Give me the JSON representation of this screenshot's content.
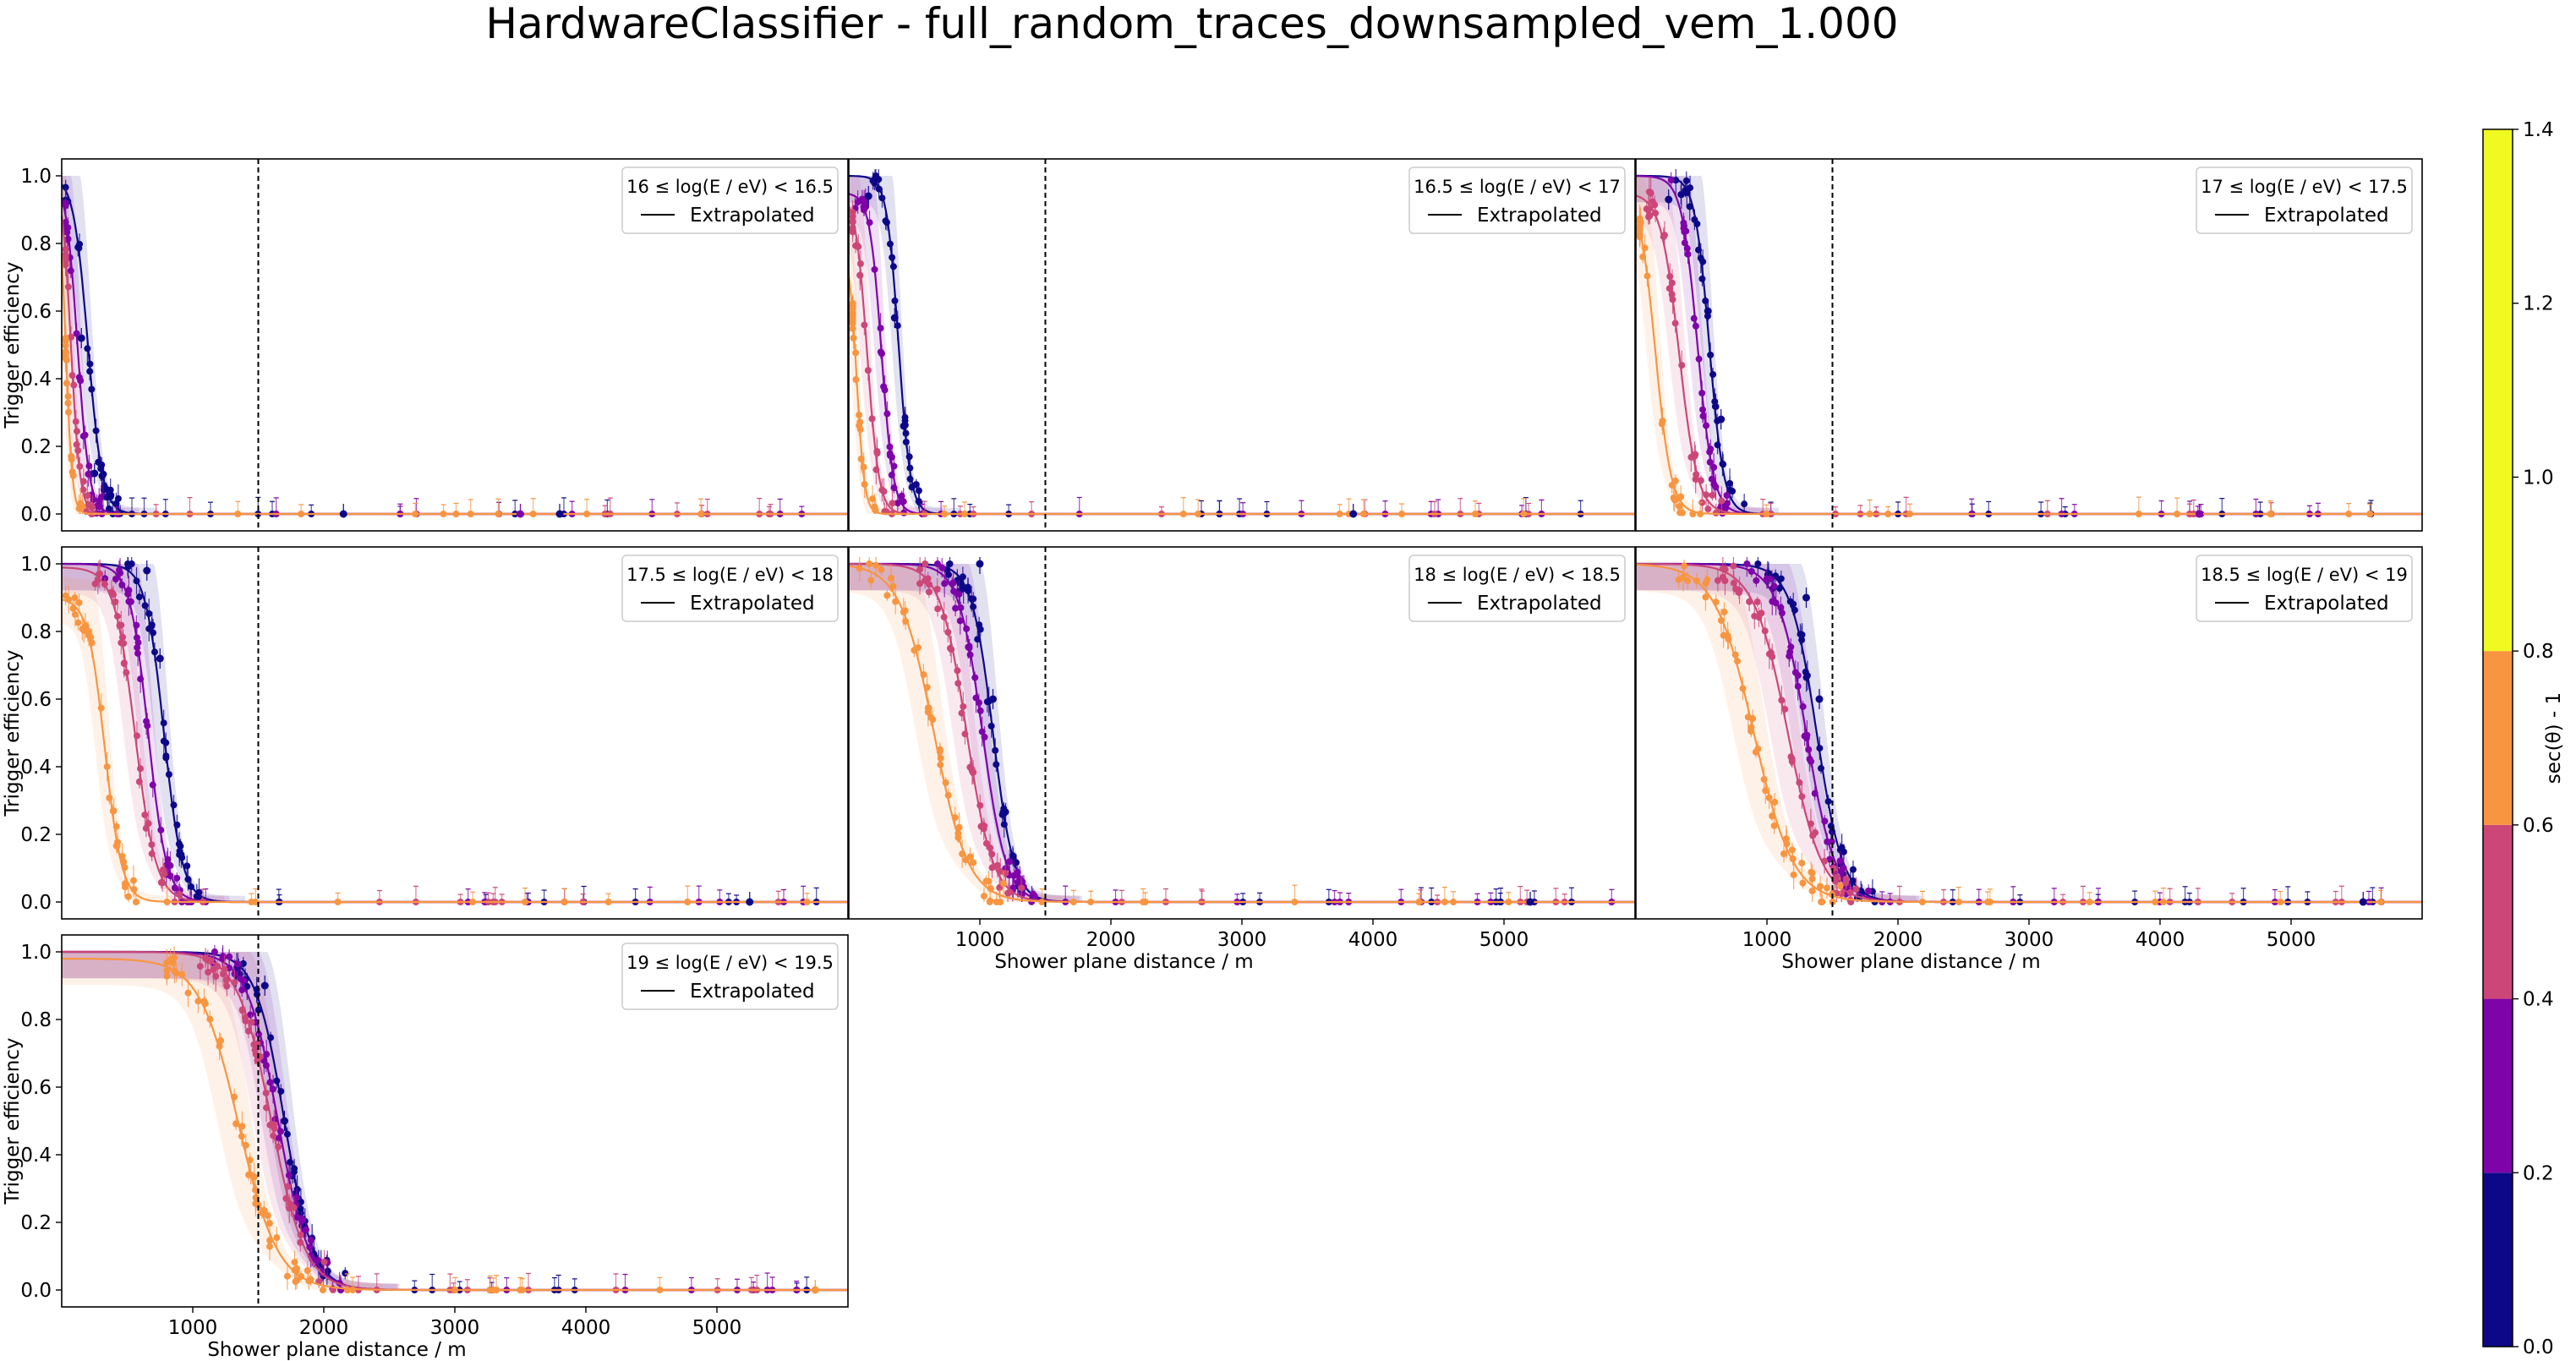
{
  "figure": {
    "title": "HardwareClassifier - full_random_traces_downsampled_vem_1.000"
  },
  "colors": {
    "bin_0.0": "#0d0887",
    "bin_0.2": "#7e03a8",
    "bin_0.4": "#cc4778",
    "bin_0.6": "#f89540",
    "bin_0.8": "#f0f921",
    "axes": "#000000",
    "dashed_line": "#000000"
  },
  "colorbar": {
    "label": "sec(θ) - 1",
    "ticks": [
      "0.0",
      "0.2",
      "0.4",
      "0.6",
      "0.8",
      "1.0",
      "1.2",
      "1.4"
    ],
    "bins": [
      {
        "from": 0.0,
        "to": 0.2,
        "color": "#0d0887"
      },
      {
        "from": 0.2,
        "to": 0.4,
        "color": "#7e03a8"
      },
      {
        "from": 0.4,
        "to": 0.6,
        "color": "#cc4778"
      },
      {
        "from": 0.6,
        "to": 0.8,
        "color": "#f89540"
      },
      {
        "from": 0.8,
        "to": 1.4,
        "color": "#f0f921"
      }
    ]
  },
  "chart_data": [
    {
      "type": "line",
      "legend_title": "16 ≤ log(E / eV) < 16.5",
      "legend_entry": "Extrapolated",
      "legend_placement": "top-right",
      "ylabel": "Trigger efficiency",
      "xlabel": "",
      "xlim": [
        0,
        6000
      ],
      "ylim": [
        -0.05,
        1.05
      ],
      "yticks": [
        "0.0",
        "0.2",
        "0.4",
        "0.6",
        "0.8",
        "1.0"
      ],
      "xticks": [],
      "reference_line_x": 1500,
      "series": [
        {
          "bin": "0.0-0.2",
          "color": "#0d0887",
          "x50": 200,
          "width": 55,
          "max": 1.0
        },
        {
          "bin": "0.2-0.4",
          "color": "#7e03a8",
          "x50": 120,
          "width": 45,
          "max": 1.0
        },
        {
          "bin": "0.4-0.6",
          "color": "#cc4778",
          "x50": 70,
          "width": 35,
          "max": 1.0
        },
        {
          "bin": "0.6-0.8",
          "color": "#f89540",
          "x50": 30,
          "width": 25,
          "max": 1.0
        }
      ],
      "points_sample": [
        {
          "x": 150,
          "y": 0.52,
          "color": "#0d0887"
        },
        {
          "x": 250,
          "y": 0.12,
          "color": "#0d0887"
        },
        {
          "x": 350,
          "y": 0.05,
          "color": "#0d0887"
        },
        {
          "x": 2150,
          "y": 0.0,
          "color": "#0d0887"
        },
        {
          "x": 3500,
          "y": 0.0,
          "color": "#7e03a8"
        },
        {
          "x": 3800,
          "y": 0.0,
          "color": "#0d0887"
        }
      ]
    },
    {
      "type": "line",
      "legend_title": "16.5 ≤ log(E / eV) < 17",
      "legend_entry": "Extrapolated",
      "legend_placement": "top-right",
      "ylabel": "",
      "xlabel": "",
      "xlim": [
        0,
        6000
      ],
      "ylim": [
        -0.05,
        1.05
      ],
      "yticks": [],
      "xticks": [],
      "reference_line_x": 1500,
      "series": [
        {
          "bin": "0.0-0.2",
          "color": "#0d0887",
          "x50": 380,
          "width": 45,
          "max": 1.0
        },
        {
          "bin": "0.2-0.4",
          "color": "#7e03a8",
          "x50": 250,
          "width": 45,
          "max": 0.95
        },
        {
          "bin": "0.4-0.6",
          "color": "#cc4778",
          "x50": 140,
          "width": 45,
          "max": 0.95
        },
        {
          "bin": "0.6-0.8",
          "color": "#f89540",
          "x50": 60,
          "width": 30,
          "max": 0.8
        }
      ],
      "points_sample": [
        {
          "x": 150,
          "y": 0.94,
          "color": "#0d0887"
        },
        {
          "x": 350,
          "y": 0.58,
          "color": "#0d0887"
        },
        {
          "x": 420,
          "y": 0.26,
          "color": "#0d0887"
        },
        {
          "x": 3850,
          "y": 0.0,
          "color": "#0d0887"
        }
      ]
    },
    {
      "type": "line",
      "legend_title": "17 ≤ log(E / eV) < 17.5",
      "legend_entry": "Extrapolated",
      "legend_placement": "top-right",
      "ylabel": "",
      "xlabel": "",
      "xlim": [
        0,
        6000
      ],
      "ylim": [
        -0.05,
        1.05
      ],
      "yticks": [],
      "xticks": [],
      "reference_line_x": 1500,
      "series": [
        {
          "bin": "0.0-0.2",
          "color": "#0d0887",
          "x50": 560,
          "width": 55,
          "max": 1.0
        },
        {
          "bin": "0.2-0.4",
          "color": "#7e03a8",
          "x50": 470,
          "width": 60,
          "max": 1.0
        },
        {
          "bin": "0.4-0.6",
          "color": "#cc4778",
          "x50": 330,
          "width": 70,
          "max": 0.95
        },
        {
          "bin": "0.6-0.8",
          "color": "#f89540",
          "x50": 150,
          "width": 60,
          "max": 0.95
        }
      ],
      "points_sample": [
        {
          "x": 250,
          "y": 0.93,
          "color": "#0d0887"
        },
        {
          "x": 550,
          "y": 0.6,
          "color": "#0d0887"
        },
        {
          "x": 650,
          "y": 0.28,
          "color": "#0d0887"
        },
        {
          "x": 4300,
          "y": 0.0,
          "color": "#7e03a8"
        }
      ]
    },
    {
      "type": "line",
      "legend_title": "17.5 ≤ log(E / eV) < 18",
      "legend_entry": "Extrapolated",
      "legend_placement": "top-right",
      "ylabel": "Trigger efficiency",
      "xlabel": "",
      "xlim": [
        0,
        6000
      ],
      "ylim": [
        -0.05,
        1.05
      ],
      "yticks": [
        "0.0",
        "0.2",
        "0.4",
        "0.6",
        "0.8",
        "1.0"
      ],
      "xticks": [],
      "reference_line_x": 1500,
      "series": [
        {
          "bin": "0.0-0.2",
          "color": "#0d0887",
          "x50": 780,
          "width": 70,
          "max": 1.0
        },
        {
          "bin": "0.2-0.4",
          "color": "#7e03a8",
          "x50": 660,
          "width": 70,
          "max": 1.0
        },
        {
          "bin": "0.4-0.6",
          "color": "#cc4778",
          "x50": 560,
          "width": 80,
          "max": 0.99
        },
        {
          "bin": "0.6-0.8",
          "color": "#f89540",
          "x50": 330,
          "width": 65,
          "max": 0.9
        }
      ],
      "points_sample": [
        {
          "x": 650,
          "y": 0.98,
          "color": "#0d0887"
        },
        {
          "x": 750,
          "y": 0.72,
          "color": "#0d0887"
        },
        {
          "x": 200,
          "y": 0.8,
          "color": "#f89540"
        },
        {
          "x": 5250,
          "y": 0.0,
          "color": "#0d0887"
        }
      ]
    },
    {
      "type": "line",
      "legend_title": "18 ≤ log(E / eV) < 18.5",
      "legend_entry": "Extrapolated",
      "legend_placement": "top-right",
      "ylabel": "",
      "xlabel": "Shower plane distance / m",
      "xlim": [
        0,
        6000
      ],
      "ylim": [
        -0.05,
        1.05
      ],
      "yticks": [],
      "xticks": [
        "1000",
        "2000",
        "3000",
        "4000",
        "5000"
      ],
      "reference_line_x": 1500,
      "series": [
        {
          "bin": "0.0-0.2",
          "color": "#0d0887",
          "x50": 1100,
          "width": 80,
          "max": 1.0
        },
        {
          "bin": "0.2-0.4",
          "color": "#7e03a8",
          "x50": 1020,
          "width": 90,
          "max": 1.0
        },
        {
          "bin": "0.4-0.6",
          "color": "#cc4778",
          "x50": 900,
          "width": 100,
          "max": 1.0
        },
        {
          "bin": "0.6-0.8",
          "color": "#f89540",
          "x50": 650,
          "width": 130,
          "max": 1.0
        }
      ],
      "points_sample": [
        {
          "x": 1000,
          "y": 1.0,
          "color": "#0d0887"
        },
        {
          "x": 1100,
          "y": 0.6,
          "color": "#0d0887"
        },
        {
          "x": 5200,
          "y": 0.0,
          "color": "#0d0887"
        }
      ]
    },
    {
      "type": "line",
      "legend_title": "18.5 ≤ log(E / eV) < 19",
      "legend_entry": "Extrapolated",
      "legend_placement": "top-right",
      "ylabel": "",
      "xlabel": "Shower plane distance / m",
      "xlim": [
        0,
        6000
      ],
      "ylim": [
        -0.05,
        1.05
      ],
      "yticks": [],
      "xticks": [
        "1000",
        "2000",
        "3000",
        "4000",
        "5000"
      ],
      "reference_line_x": 1500,
      "series": [
        {
          "bin": "0.0-0.2",
          "color": "#0d0887",
          "x50": 1380,
          "width": 100,
          "max": 1.0
        },
        {
          "bin": "0.2-0.4",
          "color": "#7e03a8",
          "x50": 1300,
          "width": 110,
          "max": 1.0
        },
        {
          "bin": "0.4-0.6",
          "color": "#cc4778",
          "x50": 1160,
          "width": 130,
          "max": 1.0
        },
        {
          "bin": "0.6-0.8",
          "color": "#f89540",
          "x50": 900,
          "width": 150,
          "max": 1.0
        }
      ],
      "points_sample": [
        {
          "x": 1300,
          "y": 0.9,
          "color": "#0d0887"
        },
        {
          "x": 1400,
          "y": 0.6,
          "color": "#0d0887"
        },
        {
          "x": 5550,
          "y": 0.0,
          "color": "#0d0887"
        }
      ]
    },
    {
      "type": "line",
      "legend_title": "19 ≤ log(E / eV) < 19.5",
      "legend_entry": "Extrapolated",
      "legend_placement": "top-right",
      "ylabel": "Trigger efficiency",
      "xlabel": "Shower plane distance / m",
      "xlim": [
        0,
        6000
      ],
      "ylim": [
        -0.05,
        1.05
      ],
      "yticks": [
        "0.0",
        "0.2",
        "0.4",
        "0.6",
        "0.8",
        "1.0"
      ],
      "xticks": [
        "1000",
        "2000",
        "3000",
        "4000",
        "5000"
      ],
      "reference_line_x": 1500,
      "series": [
        {
          "bin": "0.0-0.2",
          "color": "#0d0887",
          "x50": 1700,
          "width": 110,
          "max": 1.0
        },
        {
          "bin": "0.2-0.4",
          "color": "#7e03a8",
          "x50": 1650,
          "width": 120,
          "max": 1.0
        },
        {
          "bin": "0.4-0.6",
          "color": "#cc4778",
          "x50": 1600,
          "width": 130,
          "max": 1.0
        },
        {
          "bin": "0.6-0.8",
          "color": "#f89540",
          "x50": 1350,
          "width": 150,
          "max": 0.98
        }
      ],
      "points_sample": [
        {
          "x": 1550,
          "y": 0.9,
          "color": "#0d0887"
        },
        {
          "x": 1700,
          "y": 0.5,
          "color": "#0d0887"
        },
        {
          "x": 5750,
          "y": 0.0,
          "color": "#f89540"
        }
      ]
    }
  ]
}
